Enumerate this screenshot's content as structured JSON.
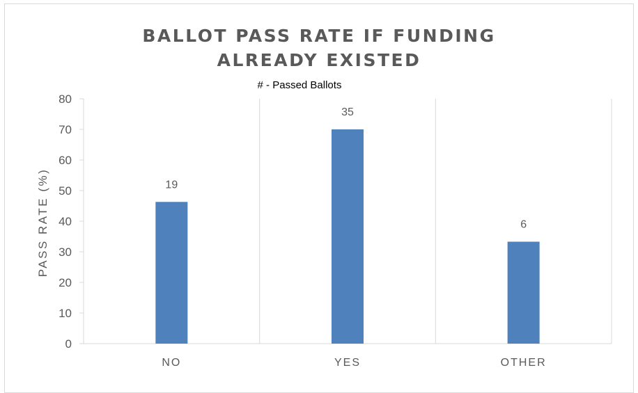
{
  "chart_data": {
    "type": "bar",
    "title_lines": [
      "BALLOT PASS RATE IF FUNDING",
      "ALREADY EXISTED"
    ],
    "subtitle": "# - Passed Ballots",
    "xlabel": "",
    "ylabel": "PASS RATE (%)",
    "categories": [
      "NO",
      "YES",
      "OTHER"
    ],
    "values": [
      46.3,
      70,
      33.3
    ],
    "data_labels": [
      "19",
      "35",
      "6"
    ],
    "ylim": [
      0,
      80
    ],
    "yticks": [
      0,
      10,
      20,
      30,
      40,
      50,
      60,
      70,
      80
    ],
    "grid": "vertical category separators",
    "bar_color": "#4f81bd",
    "axis_color": "#d9d9d9",
    "text_color": "#595959"
  }
}
